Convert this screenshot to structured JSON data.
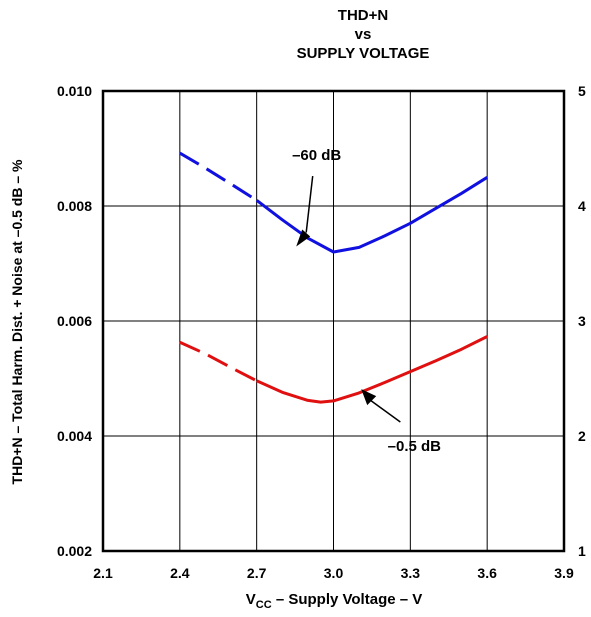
{
  "chart_data": {
    "type": "line",
    "title_lines": [
      "THD+N",
      "vs",
      "SUPPLY VOLTAGE"
    ],
    "xlabel": {
      "main": "V",
      "sub": "CC",
      "rest": " – Supply Voltage – V"
    },
    "ylabel": "THD+N – Total Harm. Dist. + Noise at –0.5 dB – %",
    "xlim": [
      2.1,
      3.9
    ],
    "ylim": [
      0.002,
      0.01
    ],
    "y2lim": [
      1,
      5
    ],
    "xticks": [
      "2.1",
      "2.4",
      "2.7",
      "3.0",
      "3.3",
      "3.6",
      "3.9"
    ],
    "yticks": [
      "0.002",
      "0.004",
      "0.006",
      "0.008",
      "0.010"
    ],
    "y2ticks": [
      "1",
      "2",
      "3",
      "4",
      "5"
    ],
    "grid": true,
    "series": [
      {
        "name": "–60 dB",
        "color": "#1010e0",
        "axis": "right",
        "dashed_until_x": 2.7,
        "x": [
          2.4,
          2.5,
          2.6,
          2.7,
          2.8,
          2.9,
          3.0,
          3.1,
          3.2,
          3.3,
          3.4,
          3.5,
          3.6
        ],
        "y": [
          4.46,
          4.33,
          4.19,
          4.05,
          3.88,
          3.72,
          3.6,
          3.64,
          3.74,
          3.85,
          3.98,
          4.11,
          4.25
        ]
      },
      {
        "name": "–0.5 dB",
        "color": "#e01010",
        "axis": "left",
        "dashed_until_x": 2.7,
        "x": [
          2.4,
          2.5,
          2.6,
          2.7,
          2.8,
          2.9,
          2.95,
          3.0,
          3.1,
          3.2,
          3.3,
          3.4,
          3.5,
          3.6
        ],
        "y": [
          0.00563,
          0.00543,
          0.00519,
          0.00496,
          0.00476,
          0.00462,
          0.00459,
          0.00461,
          0.00475,
          0.00493,
          0.00512,
          0.00531,
          0.00551,
          0.00573
        ]
      }
    ],
    "annotations": [
      {
        "text": "–60 dB",
        "series": 0
      },
      {
        "text": "–0.5 dB",
        "series": 1
      }
    ]
  }
}
